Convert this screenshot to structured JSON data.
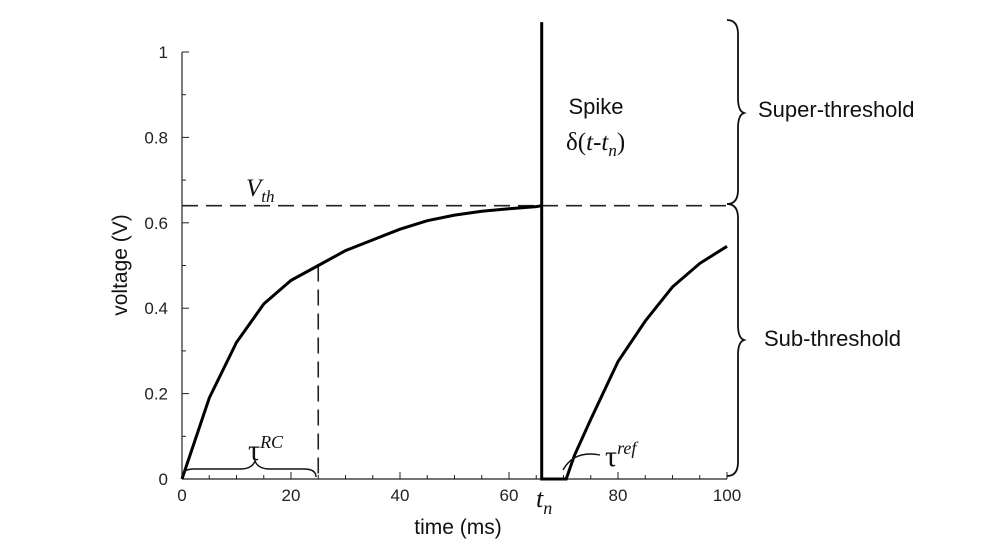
{
  "chart_data": {
    "type": "line",
    "xlabel": "time (ms)",
    "ylabel": "voltage (V)",
    "xlim": [
      0,
      100
    ],
    "ylim": [
      0,
      1
    ],
    "xticks": [
      0,
      20,
      40,
      60,
      80,
      100
    ],
    "yticks": [
      0,
      0.2,
      0.4,
      0.6,
      0.8,
      1
    ],
    "xtick_labels": [
      "0",
      "20",
      "40",
      "60",
      "80",
      "100"
    ],
    "ytick_labels": [
      "0",
      "0.2",
      "0.4",
      "0.6",
      "0.8",
      "1"
    ],
    "grid": false,
    "threshold": 0.64,
    "tau_rc_marker": {
      "x": 25,
      "y": 0.5
    },
    "spike_time": 66,
    "refractory": {
      "start": 66,
      "end": 70.5
    },
    "series": [
      {
        "x": [
          0,
          5,
          10,
          15,
          20,
          25,
          30,
          35,
          40,
          45,
          50,
          55,
          60,
          65,
          66
        ],
        "values": [
          0,
          0.19,
          0.32,
          0.41,
          0.465,
          0.5,
          0.535,
          0.56,
          0.585,
          0.605,
          0.618,
          0.627,
          0.633,
          0.638,
          0.64
        ]
      },
      {
        "x": [
          66,
          66,
          70.5,
          72,
          75,
          80,
          85,
          90,
          95,
          100
        ],
        "values": [
          1.07,
          0,
          0,
          0.055,
          0.14,
          0.275,
          0.37,
          0.45,
          0.505,
          0.545
        ]
      }
    ],
    "annotations": {
      "vth_base": "V",
      "vth_sub": "th",
      "tau_symbol": "τ",
      "tau_rc_sup": "RC",
      "tau_ref_sup": "ref",
      "spike_label": "Spike",
      "spike_formula_prefix": "δ(",
      "spike_formula_t": "t",
      "spike_formula_minus": "-",
      "spike_formula_tn": "t",
      "spike_formula_tn_sub": "n",
      "spike_formula_suffix": ")",
      "tn_base": "t",
      "tn_sub": "n",
      "super_threshold": "Super-threshold",
      "sub_threshold": "Sub-threshold"
    }
  }
}
